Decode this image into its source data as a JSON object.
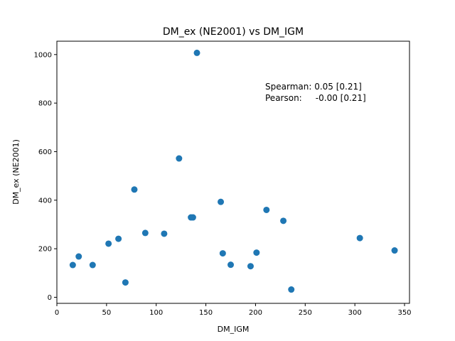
{
  "chart_data": {
    "type": "scatter",
    "title": "DM_ex (NE2001) vs DM_IGM",
    "xlabel": "DM_IGM",
    "ylabel": "DM_ex (NE2001)",
    "xlim": [
      0,
      355
    ],
    "ylim": [
      -25,
      1055
    ],
    "xticks": [
      0,
      50,
      100,
      150,
      200,
      250,
      300,
      350
    ],
    "yticks": [
      0,
      200,
      400,
      600,
      800,
      1000
    ],
    "grid": false,
    "marker_color": "#1f77b4",
    "annotations": [
      {
        "line1": "Spearman: 0.05 [0.21]",
        "line2": "Pearson:     -0.00 [0.21]",
        "x": 209,
        "y": 870
      }
    ],
    "points": [
      {
        "x": 16,
        "y": 133
      },
      {
        "x": 22,
        "y": 168
      },
      {
        "x": 36,
        "y": 133
      },
      {
        "x": 52,
        "y": 221
      },
      {
        "x": 62,
        "y": 241
      },
      {
        "x": 69,
        "y": 61
      },
      {
        "x": 78,
        "y": 444
      },
      {
        "x": 89,
        "y": 265
      },
      {
        "x": 108,
        "y": 262
      },
      {
        "x": 123,
        "y": 572
      },
      {
        "x": 135,
        "y": 329
      },
      {
        "x": 137,
        "y": 329
      },
      {
        "x": 141,
        "y": 1007
      },
      {
        "x": 165,
        "y": 393
      },
      {
        "x": 167,
        "y": 181
      },
      {
        "x": 175,
        "y": 134
      },
      {
        "x": 195,
        "y": 128
      },
      {
        "x": 201,
        "y": 184
      },
      {
        "x": 211,
        "y": 360
      },
      {
        "x": 228,
        "y": 315
      },
      {
        "x": 236,
        "y": 32
      },
      {
        "x": 305,
        "y": 244
      },
      {
        "x": 340,
        "y": 193
      }
    ]
  }
}
